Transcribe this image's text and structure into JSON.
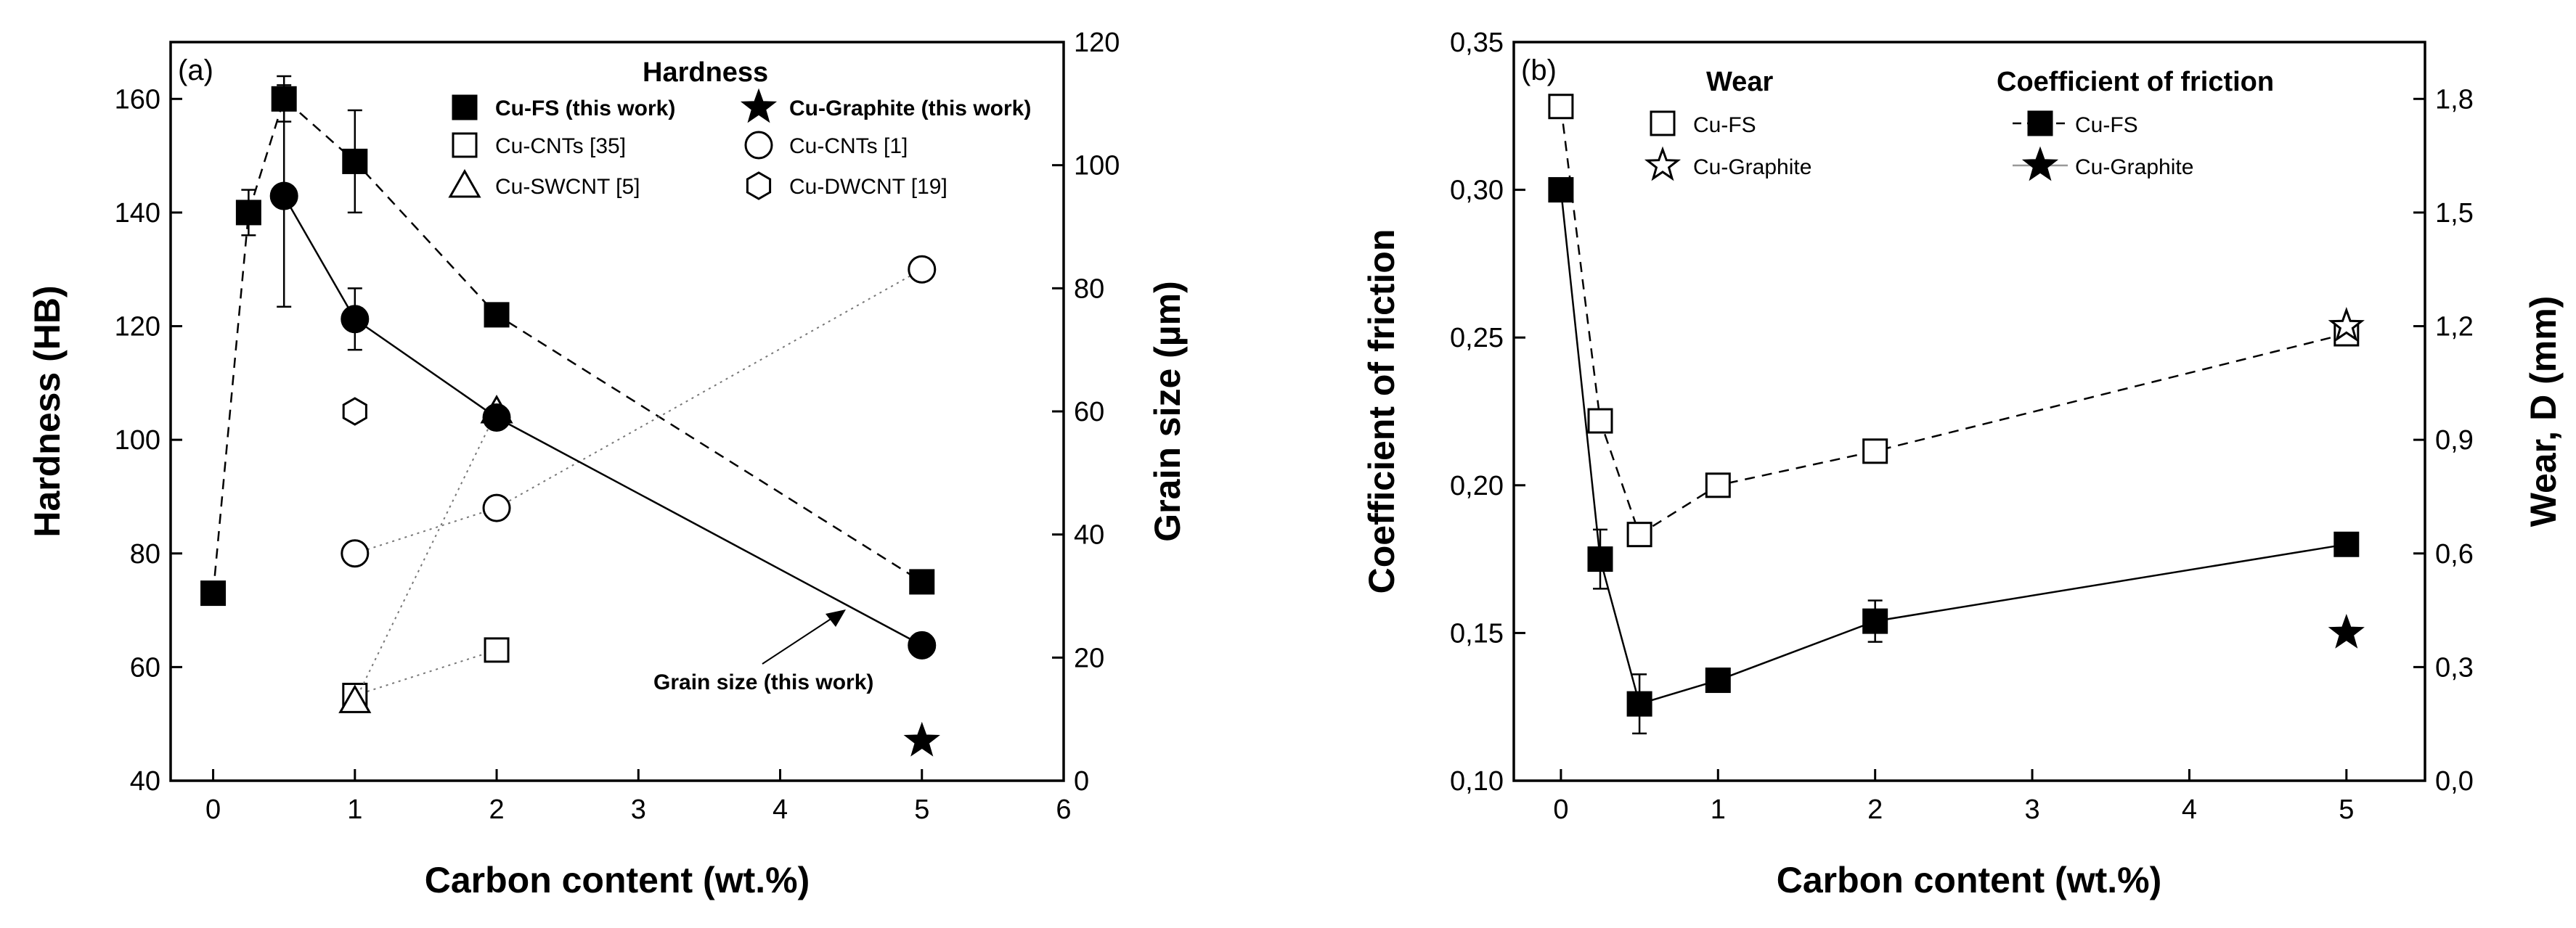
{
  "chart_data": [
    {
      "type": "scatter",
      "panel_label": "(a)",
      "xlabel": "Carbon content (wt.%)",
      "ylabel": "Hardness (HB)",
      "y2label": "Grain size (µm)",
      "xlim": [
        -0.3,
        6
      ],
      "ylim": [
        40,
        170
      ],
      "y2lim": [
        0,
        120
      ],
      "xticks": [
        "0",
        "1",
        "2",
        "3",
        "4",
        "5",
        "6"
      ],
      "yticks": [
        "40",
        "60",
        "80",
        "100",
        "120",
        "140",
        "160"
      ],
      "y2ticks": [
        "0",
        "20",
        "40",
        "60",
        "80",
        "100",
        "120"
      ],
      "legend_title": "Hardness",
      "legend_entries": [
        "Cu-FS (this work)",
        "Cu-Graphite (this work)",
        "Cu-CNTs  [35]",
        "Cu-CNTs [1]",
        "Cu-SWCNT [5]",
        "Cu-DWCNT [19]"
      ],
      "annotation": "Grain size (this work)",
      "series": [
        {
          "name": "Cu-FS (this work)",
          "axis": "left",
          "marker": "filled-square",
          "line": "dash",
          "x": [
            0,
            0.25,
            0.5,
            1,
            2,
            5
          ],
          "y": [
            73,
            140,
            160,
            149,
            122,
            75
          ],
          "err": [
            0,
            4,
            4,
            9,
            2,
            1
          ]
        },
        {
          "name": "Cu-Graphite (this work)",
          "axis": "left",
          "marker": "filled-star",
          "line": "none",
          "x": [
            5
          ],
          "y": [
            47
          ],
          "err": [
            0
          ]
        },
        {
          "name": "Cu-CNTs  [35]",
          "axis": "left",
          "marker": "open-square",
          "line": "dot",
          "x": [
            1,
            2
          ],
          "y": [
            55,
            63
          ],
          "err": [
            0,
            0
          ]
        },
        {
          "name": "Cu-CNTs [1]",
          "axis": "left",
          "marker": "open-circle",
          "line": "dot",
          "x": [
            1,
            2,
            5
          ],
          "y": [
            80,
            88,
            130
          ],
          "err": [
            0,
            0,
            0
          ]
        },
        {
          "name": "Cu-SWCNT [5]",
          "axis": "left",
          "marker": "open-triangle",
          "line": "dot",
          "x": [
            1,
            2
          ],
          "y": [
            54,
            105
          ],
          "err": [
            0,
            0
          ]
        },
        {
          "name": "Cu-DWCNT [19]",
          "axis": "left",
          "marker": "open-hexagon",
          "line": "none",
          "x": [
            1
          ],
          "y": [
            105
          ],
          "err": [
            0
          ]
        },
        {
          "name": "Grain size (this work)",
          "axis": "right",
          "marker": "filled-circle",
          "line": "solid",
          "x": [
            0.5,
            1,
            2,
            5
          ],
          "y": [
            95,
            75,
            59,
            22
          ],
          "err": [
            18,
            5,
            0,
            0
          ]
        }
      ]
    },
    {
      "type": "scatter",
      "panel_label": "(b)",
      "xlabel": "Carbon content (wt.%)",
      "ylabel": "Coefficient of friction",
      "y2label": "Wear, D (mm)",
      "xlim": [
        -0.3,
        5.5
      ],
      "ylim": [
        0.1,
        0.35
      ],
      "y2lim": [
        0.0,
        1.95
      ],
      "xticks": [
        "0",
        "1",
        "2",
        "3",
        "4",
        "5"
      ],
      "yticks": [
        "0,10",
        "0,15",
        "0,20",
        "0,25",
        "0,30",
        "0,35"
      ],
      "y2ticks": [
        "0,0",
        "0,3",
        "0,6",
        "0,9",
        "1,2",
        "1,5",
        "1,8"
      ],
      "legend_wear_title": "Wear",
      "legend_cof_title": "Coefficient of friction",
      "legend_wear_entries": [
        "Cu-FS",
        "Cu-Graphite"
      ],
      "legend_cof_entries": [
        "Cu-FS",
        "Cu-Graphite"
      ],
      "series": [
        {
          "name": "Wear Cu-FS",
          "axis": "right",
          "marker": "open-square",
          "line": "dash",
          "x": [
            0,
            0.25,
            0.5,
            1,
            2,
            5
          ],
          "y": [
            1.78,
            0.95,
            0.65,
            0.78,
            0.87,
            1.18
          ],
          "err": [
            0,
            0,
            0,
            0,
            0,
            0
          ]
        },
        {
          "name": "Wear Cu-Graphite",
          "axis": "right",
          "marker": "open-star",
          "line": "none",
          "x": [
            5
          ],
          "y": [
            1.2
          ],
          "err": [
            0
          ]
        },
        {
          "name": "CoF Cu-FS",
          "axis": "left",
          "marker": "filled-square",
          "line": "solid",
          "x": [
            0,
            0.25,
            0.5,
            1,
            2,
            5
          ],
          "y": [
            0.3,
            0.175,
            0.126,
            0.134,
            0.154,
            0.18
          ],
          "err": [
            0,
            0.01,
            0.01,
            0,
            0.007,
            0.003
          ]
        },
        {
          "name": "CoF Cu-Graphite",
          "axis": "left",
          "marker": "filled-star",
          "line": "none",
          "x": [
            5
          ],
          "y": [
            0.15
          ],
          "err": [
            0
          ]
        }
      ]
    }
  ]
}
